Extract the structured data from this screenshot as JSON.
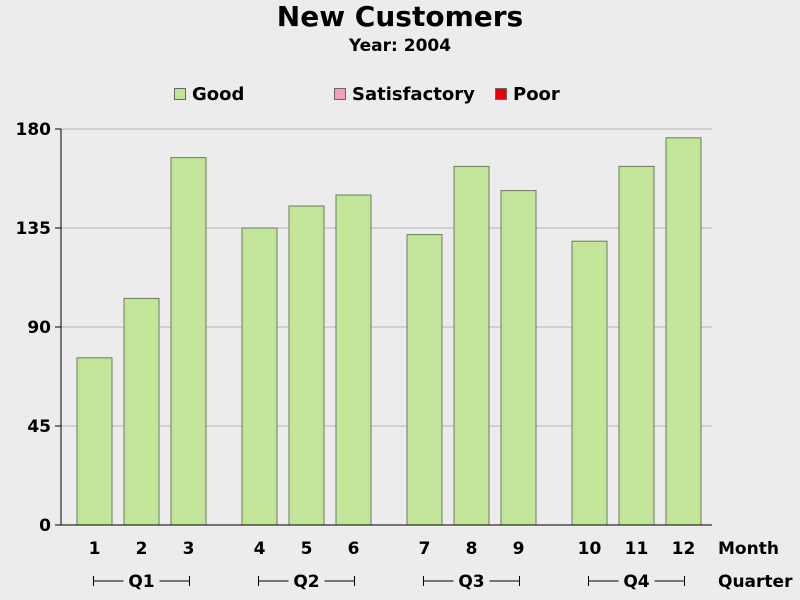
{
  "chart_data": {
    "type": "bar",
    "title": "New Customers",
    "subtitle": "Year: 2004",
    "categories": [
      "1",
      "2",
      "3",
      "4",
      "5",
      "6",
      "7",
      "8",
      "9",
      "10",
      "11",
      "12"
    ],
    "groups": [
      {
        "label": "Q1",
        "members": [
          "1",
          "2",
          "3"
        ]
      },
      {
        "label": "Q2",
        "members": [
          "4",
          "5",
          "6"
        ]
      },
      {
        "label": "Q3",
        "members": [
          "7",
          "8",
          "9"
        ]
      },
      {
        "label": "Q4",
        "members": [
          "10",
          "11",
          "12"
        ]
      }
    ],
    "series": [
      {
        "name": "Good",
        "color": "#c3e59a",
        "values": [
          76,
          103,
          167,
          135,
          145,
          150,
          132,
          163,
          152,
          129,
          163,
          176
        ]
      }
    ],
    "legend": [
      {
        "name": "Good",
        "color": "#c3e59a"
      },
      {
        "name": "Satisfactory",
        "color": "#f4a0b4"
      },
      {
        "name": "Poor",
        "color": "#e8000b"
      }
    ],
    "xlabel": "Month",
    "group_axis_label": "Quarter",
    "ylabel": "",
    "ylim": [
      0,
      180
    ],
    "yticks": [
      0,
      45,
      90,
      135,
      180
    ],
    "grid": true,
    "legend_position": "top"
  }
}
